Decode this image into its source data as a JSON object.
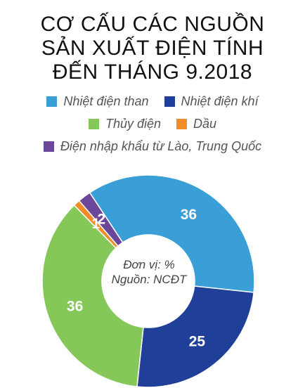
{
  "title": {
    "line1": "CƠ CẤU CÁC NGUỒN",
    "line2": "SẢN XUẤT ĐIỆN TÍNH",
    "line3": "ĐẾN THÁNG 9.2018"
  },
  "center_note": {
    "unit": "Đơn vị: %",
    "source": "Nguồn: NCĐT"
  },
  "colors": {
    "nhiet_dien_than": "#3A9FD6",
    "nhiet_dien_khi": "#1F3F99",
    "thuy_dien": "#86C75A",
    "dau": "#F28C28",
    "dien_nhap_khau": "#6B479A"
  },
  "chart_data": {
    "type": "pie",
    "donut": true,
    "unit": "%",
    "categories": [
      "Nhiệt điện than",
      "Nhiệt điện khí",
      "Thủy điện",
      "Dầu",
      "Điện nhập khẩu từ Lào, Trung Quốc"
    ],
    "values": [
      36,
      25,
      36,
      1,
      2
    ],
    "colors": [
      "#3A9FD6",
      "#1F3F99",
      "#86C75A",
      "#F28C28",
      "#6B479A"
    ],
    "data_labels": [
      "36",
      "25",
      "36",
      "1",
      "2"
    ],
    "legend_placement": "top"
  }
}
